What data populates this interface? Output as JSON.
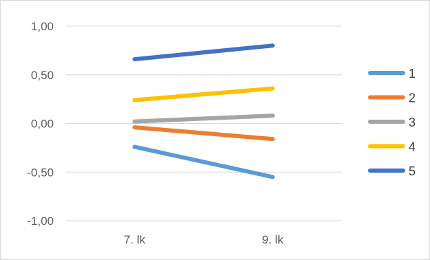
{
  "chart_data": {
    "type": "line",
    "categories": [
      "7. lk",
      "9. lk"
    ],
    "series": [
      {
        "name": "1",
        "color": "#5B9BD5",
        "values": [
          -0.24,
          -0.55
        ]
      },
      {
        "name": "2",
        "color": "#ED7D31",
        "values": [
          -0.04,
          -0.16
        ]
      },
      {
        "name": "3",
        "color": "#A5A5A5",
        "values": [
          0.02,
          0.08
        ]
      },
      {
        "name": "4",
        "color": "#FFC000",
        "values": [
          0.24,
          0.36
        ]
      },
      {
        "name": "5",
        "color": "#4472C4",
        "values": [
          0.66,
          0.8
        ]
      }
    ],
    "yticks": [
      "1,00",
      "0,50",
      "0,00",
      "-0,50",
      "-1,00"
    ],
    "ylim": [
      -1.0,
      1.0
    ],
    "ytick_values": [
      1.0,
      0.5,
      0.0,
      -0.5,
      -1.0
    ],
    "grid": true,
    "legend_position": "right",
    "title": "",
    "xlabel": "",
    "ylabel": ""
  }
}
